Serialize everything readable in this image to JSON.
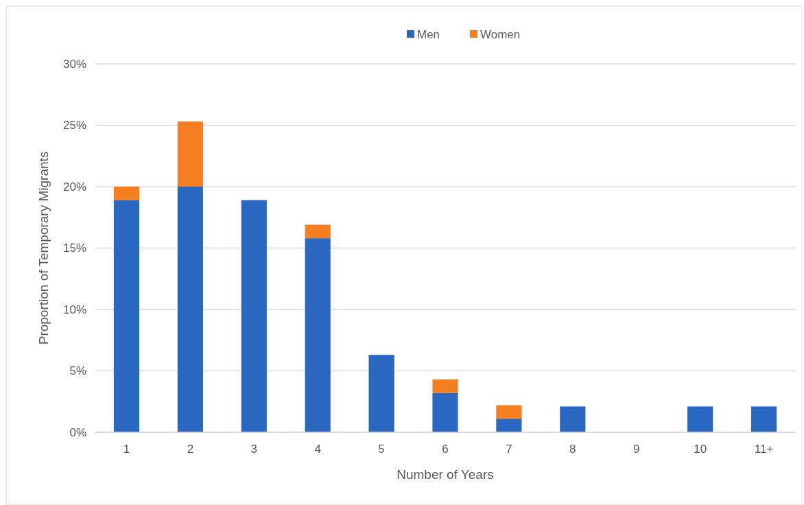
{
  "chart_data": {
    "type": "bar",
    "stacked": true,
    "categories": [
      "1",
      "2",
      "3",
      "4",
      "5",
      "6",
      "7",
      "8",
      "9",
      "10",
      "11+"
    ],
    "series": [
      {
        "name": "Men",
        "color": "#2a67c1",
        "values": [
          18.9,
          20.0,
          18.9,
          15.8,
          6.3,
          3.2,
          1.1,
          2.1,
          0,
          2.1,
          2.1
        ]
      },
      {
        "name": "Women",
        "color": "#f47e20",
        "values": [
          1.1,
          5.3,
          0,
          1.1,
          0,
          1.1,
          1.1,
          0,
          0,
          0,
          0
        ]
      }
    ],
    "xlabel": "Number of Years",
    "ylabel": "Proportion of Temporary Migrants",
    "ylim": [
      0,
      30
    ],
    "yticks": [
      {
        "value": 0,
        "label": "0%"
      },
      {
        "value": 5,
        "label": "5%"
      },
      {
        "value": 10,
        "label": "10%"
      },
      {
        "value": 15,
        "label": "15%"
      },
      {
        "value": 20,
        "label": "20%"
      },
      {
        "value": 25,
        "label": "25%"
      },
      {
        "value": 30,
        "label": "30%"
      }
    ],
    "grid": "y",
    "legend": "top"
  }
}
